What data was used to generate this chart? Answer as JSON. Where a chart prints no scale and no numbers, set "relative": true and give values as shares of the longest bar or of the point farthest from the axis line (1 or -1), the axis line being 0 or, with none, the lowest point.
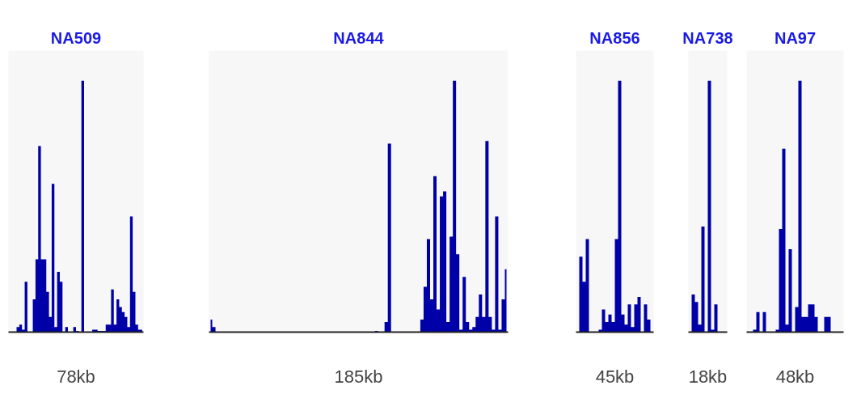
{
  "chart_data": [
    {
      "type": "area",
      "title": "NA509",
      "xlabel": "78kb",
      "relative": true,
      "color": "#0000a8",
      "categories": [
        null,
        null,
        null,
        null,
        null,
        null,
        null,
        null,
        null,
        null,
        null,
        null,
        null,
        null,
        null,
        null,
        null,
        null,
        null,
        null,
        null,
        null,
        null,
        null,
        null,
        null,
        null,
        null,
        null,
        null,
        null,
        null,
        null,
        null,
        null,
        null,
        null,
        null,
        null,
        null,
        null,
        null,
        null,
        null,
        null,
        null,
        null,
        null,
        null,
        null
      ],
      "values": [
        0,
        0,
        0,
        0.02,
        0.03,
        0.01,
        0.2,
        0,
        0,
        0.13,
        0.29,
        0.74,
        0.29,
        0.29,
        0.16,
        0.06,
        0.59,
        0.02,
        0.24,
        0.2,
        0,
        0.02,
        0,
        0,
        0.02,
        0.005,
        0,
        1.0,
        0,
        0,
        0,
        0.01,
        0.01,
        0.005,
        0.005,
        0.005,
        0.03,
        0.03,
        0.17,
        0.03,
        0.13,
        0.1,
        0.08,
        0.06,
        0.02,
        0.46,
        0.16,
        0.03,
        0.01,
        0.01
      ]
    },
    {
      "type": "area",
      "title": "NA844",
      "xlabel": "185kb",
      "relative": true,
      "color": "#0000a8",
      "categories": [
        null,
        null,
        null,
        null,
        null,
        null,
        null,
        null,
        null,
        null,
        null,
        null,
        null,
        null,
        null,
        null,
        null,
        null,
        null,
        null,
        null,
        null,
        null,
        null,
        null,
        null,
        null,
        null,
        null,
        null,
        null,
        null,
        null,
        null,
        null,
        null,
        null,
        null,
        null,
        null,
        null,
        null,
        null,
        null,
        null,
        null,
        null,
        null,
        null,
        null,
        null,
        null,
        null,
        null,
        null,
        null,
        null,
        null,
        null,
        null,
        null,
        null,
        null,
        null,
        null,
        null,
        null,
        null,
        null,
        null,
        null,
        null,
        null,
        null,
        null,
        null,
        null,
        null,
        null,
        null,
        null,
        null,
        null,
        null,
        null,
        null,
        null,
        null,
        null,
        null,
        null,
        null
      ],
      "values": [
        0.05,
        0.02,
        0,
        0,
        0,
        0,
        0,
        0,
        0,
        0,
        0,
        0,
        0,
        0,
        0,
        0,
        0,
        0,
        0,
        0,
        0,
        0,
        0,
        0,
        0,
        0,
        0,
        0,
        0,
        0,
        0,
        0,
        0,
        0,
        0,
        0,
        0,
        0,
        0,
        0,
        0,
        0,
        0,
        0,
        0,
        0,
        0,
        0,
        0,
        0,
        0,
        0.005,
        0,
        0,
        0.04,
        0.75,
        0,
        0,
        0,
        0,
        0,
        0,
        0,
        0,
        0,
        0.05,
        0.18,
        0.37,
        0.13,
        0.62,
        0.09,
        0.54,
        0.56,
        0.04,
        0.38,
        1.0,
        0.31,
        0.01,
        0.22,
        0.04,
        0.01,
        0.02,
        0.06,
        0.15,
        0.06,
        0.76,
        0.06,
        0.01,
        0.46,
        0.01,
        0.13,
        0.25
      ]
    },
    {
      "type": "area",
      "title": "NA856",
      "xlabel": "45kb",
      "relative": true,
      "color": "#0000a8",
      "categories": [
        null,
        null,
        null,
        null,
        null,
        null,
        null,
        null,
        null,
        null,
        null,
        null,
        null,
        null,
        null,
        null,
        null,
        null,
        null,
        null,
        null,
        null,
        null,
        null
      ],
      "values": [
        0,
        0.3,
        0.2,
        0.37,
        0,
        0,
        0,
        0.01,
        0.09,
        0.04,
        0.07,
        0.04,
        0.37,
        1.0,
        0.07,
        0.03,
        0.11,
        0.02,
        0.11,
        0.14,
        0,
        0.11,
        0.05,
        0
      ]
    },
    {
      "type": "area",
      "title": "NA738",
      "xlabel": "18kb",
      "relative": true,
      "color": "#0000a8",
      "categories": [
        null,
        null,
        null,
        null,
        null,
        null,
        null,
        null,
        null,
        null,
        null,
        null
      ],
      "values": [
        0,
        0.15,
        0.12,
        0.03,
        0.42,
        0,
        1.0,
        0.01,
        0.11,
        0,
        0,
        0
      ]
    },
    {
      "type": "area",
      "title": "NA97",
      "xlabel": "48kb",
      "relative": true,
      "color": "#0000a8",
      "categories": [
        null,
        null,
        null,
        null,
        null,
        null,
        null,
        null,
        null,
        null,
        null,
        null,
        null,
        null,
        null,
        null,
        null,
        null,
        null,
        null,
        null,
        null,
        null,
        null,
        null,
        null,
        null,
        null,
        null,
        null
      ],
      "values": [
        0,
        0,
        0.01,
        0.08,
        0,
        0.08,
        0,
        0,
        0,
        0.01,
        0.41,
        0.73,
        0.03,
        0.33,
        0,
        0.1,
        1.0,
        0.06,
        0.06,
        0.11,
        0.11,
        0.06,
        0,
        0,
        0.06,
        0.06,
        0,
        0,
        0,
        0
      ]
    }
  ]
}
